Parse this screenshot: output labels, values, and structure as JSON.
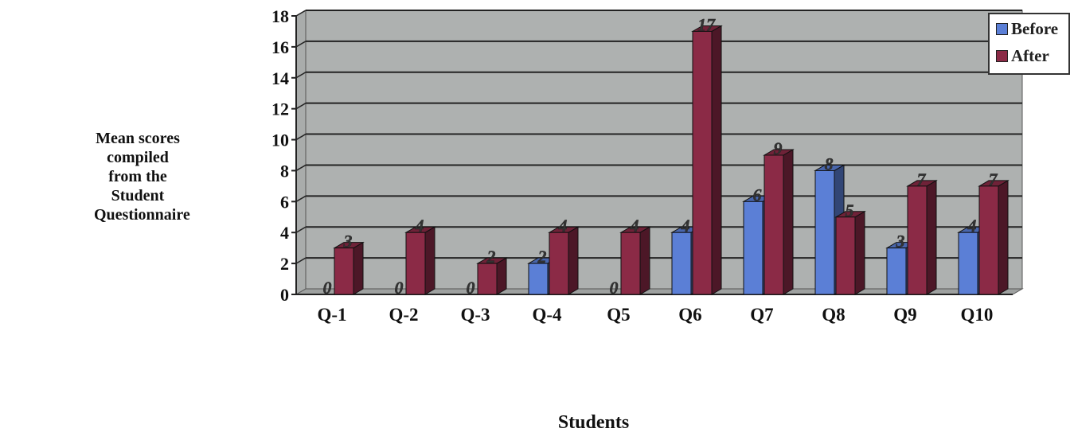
{
  "chart_data": {
    "type": "bar",
    "categories": [
      "Q-1",
      "Q-2",
      "Q-3",
      "Q-4",
      "Q5",
      "Q6",
      "Q7",
      "Q8",
      "Q9",
      "Q10"
    ],
    "series": [
      {
        "name": "Before",
        "color": "#5b7fd6",
        "values": [
          0,
          0,
          0,
          2,
          0,
          4,
          6,
          8,
          3,
          4
        ]
      },
      {
        "name": "After",
        "color": "#8b2a46",
        "values": [
          3,
          4,
          2,
          4,
          4,
          17,
          9,
          5,
          7,
          7
        ]
      }
    ],
    "ylabel": "Mean scores compiled from the Student Questionnaire",
    "xlabel": "Students",
    "ylim": [
      0,
      18
    ],
    "yticks": [
      0,
      2,
      4,
      6,
      8,
      10,
      12,
      14,
      16,
      18
    ],
    "grid": true,
    "legend_position": "top-right"
  }
}
